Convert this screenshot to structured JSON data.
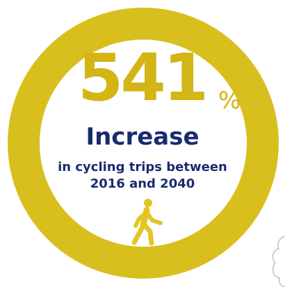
{
  "stat": {
    "number": "541",
    "unit": "%",
    "headline": "Increase",
    "subline_1": "in cycling trips between",
    "subline_2": "2016 and 2040"
  },
  "colors": {
    "ring": "#d8bf1e",
    "number": "#d3b515",
    "text": "#1b2b6f",
    "icon": "#e3c625"
  },
  "icons": {
    "figure": "walking-person-icon",
    "corner": "doodle-outline"
  }
}
